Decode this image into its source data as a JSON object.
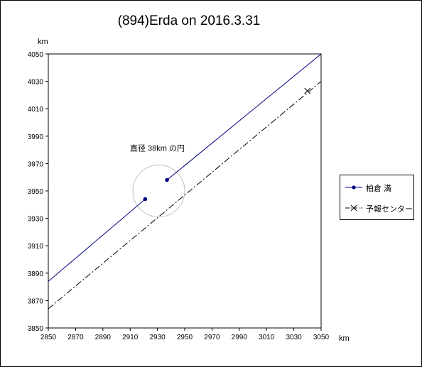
{
  "chart_data": {
    "type": "line",
    "title": "(894)Erda on 2016.3.31",
    "x_unit": "km",
    "y_unit": "km",
    "xlim": [
      2850,
      3050
    ],
    "ylim": [
      3850,
      4050
    ],
    "x_ticks": [
      2850,
      2870,
      2890,
      2910,
      2930,
      2950,
      2970,
      2990,
      3010,
      3030,
      3050
    ],
    "y_ticks": [
      3850,
      3870,
      3890,
      3910,
      3930,
      3950,
      3970,
      3990,
      4010,
      4030,
      4050
    ],
    "grid": false,
    "legend_position": "right",
    "series": [
      {
        "name": "柏倉 満",
        "color": "#000080",
        "style": "solid",
        "marker": "dot",
        "segments": [
          [
            [
              2850,
              3884
            ],
            [
              2921,
              3944
            ]
          ],
          [
            [
              2937,
              3958
            ],
            [
              3050,
              4050
            ]
          ]
        ],
        "points": [
          [
            2921,
            3944
          ],
          [
            2937,
            3958
          ]
        ]
      },
      {
        "name": "予報センター",
        "color": "#000000",
        "style": "dashdot",
        "marker": "x",
        "segments": [
          [
            [
              2850,
              3864
            ],
            [
              3050,
              4030
            ]
          ]
        ],
        "points": [
          [
            3040,
            4023
          ]
        ]
      }
    ],
    "annotations": [
      {
        "text": "直径 38km の円",
        "circle": {
          "cx": 2931,
          "cy": 3950,
          "r": 19
        },
        "circle_color": "#c0c0c0"
      }
    ]
  }
}
